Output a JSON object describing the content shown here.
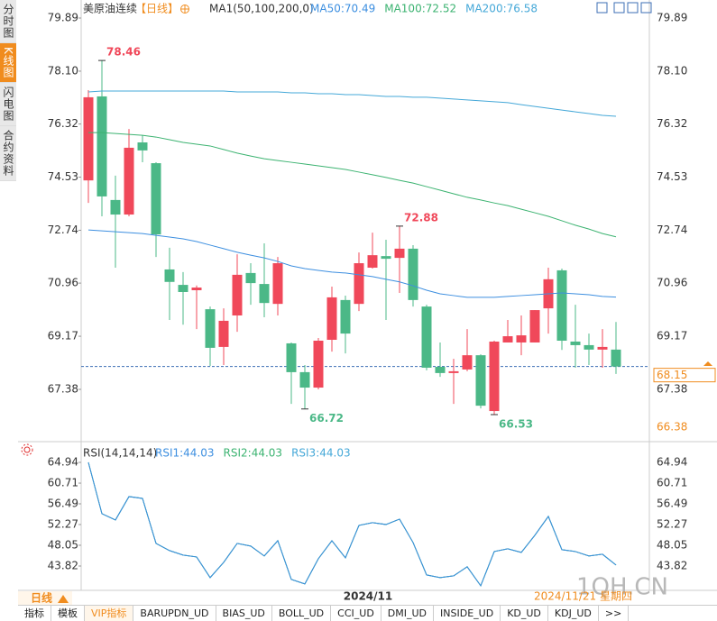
{
  "sidebar": [
    {
      "label": "分时图"
    },
    {
      "label": "K线图",
      "active": true
    },
    {
      "label": "闪电图"
    },
    {
      "label": "合约资料"
    }
  ],
  "chart_data": [
    {
      "type": "candlestick",
      "title": "美原油连续",
      "subtitle": "【日线】",
      "indicator": "MA1(50,100,200,0)",
      "categories": [
        null,
        null,
        null,
        null,
        null,
        null,
        null,
        null,
        null,
        null,
        null,
        null,
        null,
        null,
        null,
        null,
        null,
        null,
        null,
        null,
        null,
        "2024/11",
        null,
        null,
        null,
        null,
        null,
        null,
        null,
        null,
        null,
        null,
        null,
        null,
        null,
        null,
        null,
        null,
        null,
        null
      ],
      "open": [
        74.42,
        77.25,
        73.76,
        73.27,
        75.7,
        75.0,
        71.42,
        70.9,
        70.72,
        70.08,
        68.81,
        69.87,
        71.3,
        70.93,
        70.26,
        68.93,
        67.96,
        67.44,
        69.05,
        70.39,
        70.26,
        71.48,
        71.87,
        71.81,
        72.12,
        70.17,
        68.14,
        67.93,
        68.05,
        68.53,
        66.65,
        68.96,
        68.96,
        68.96,
        70.11,
        71.39,
        68.99,
        68.87,
        68.72,
        68.72
      ],
      "high": [
        77.46,
        78.46,
        74.58,
        76.15,
        75.94,
        75.03,
        72.15,
        71.33,
        70.88,
        70.17,
        70.11,
        71.93,
        71.63,
        72.3,
        71.84,
        68.96,
        68.2,
        69.11,
        70.84,
        70.54,
        71.99,
        72.66,
        72.42,
        72.88,
        72.24,
        70.23,
        68.96,
        68.41,
        69.41,
        68.56,
        69.02,
        69.72,
        69.87,
        70.05,
        71.48,
        71.45,
        70.23,
        69.26,
        69.41,
        69.65
      ],
      "low": [
        73.66,
        73.21,
        71.48,
        73.21,
        75.03,
        71.84,
        69.72,
        69.56,
        69.41,
        68.17,
        68.2,
        69.32,
        70.23,
        69.81,
        69.87,
        66.89,
        66.72,
        67.38,
        68.65,
        68.59,
        70.02,
        71.45,
        69.72,
        70.63,
        70.17,
        68.02,
        67.8,
        66.89,
        67.99,
        66.74,
        66.53,
        68.96,
        68.53,
        68.96,
        69.26,
        68.71,
        68.11,
        68.2,
        68.11,
        67.9
      ],
      "close": [
        77.22,
        73.88,
        73.27,
        75.52,
        75.43,
        72.6,
        71.0,
        70.66,
        70.81,
        68.78,
        69.69,
        71.24,
        70.96,
        70.29,
        71.63,
        67.96,
        67.44,
        69.02,
        70.48,
        69.26,
        71.63,
        71.9,
        71.78,
        72.12,
        70.39,
        68.11,
        67.93,
        67.99,
        68.53,
        66.83,
        68.99,
        69.17,
        69.2,
        70.05,
        71.09,
        69.02,
        68.87,
        68.72,
        68.81,
        68.15
      ],
      "up_color": "#f0485a",
      "down_color": "#4bb887",
      "ma_series": [
        {
          "name": "MA50:70.49",
          "color": "#3d8fe0",
          "values": [
            72.75,
            72.72,
            72.69,
            72.66,
            72.63,
            72.57,
            72.51,
            72.45,
            72.36,
            72.24,
            72.12,
            72.0,
            71.9,
            71.81,
            71.69,
            71.54,
            71.45,
            71.39,
            71.33,
            71.3,
            71.24,
            71.18,
            71.09,
            71.0,
            70.87,
            70.72,
            70.6,
            70.54,
            70.48,
            70.48,
            70.48,
            70.51,
            70.54,
            70.57,
            70.6,
            70.63,
            70.6,
            70.57,
            70.51,
            70.49
          ]
        },
        {
          "name": "MA100:72.52",
          "color": "#3cb371",
          "values": [
            76.03,
            76.03,
            76.0,
            75.97,
            75.94,
            75.88,
            75.79,
            75.7,
            75.64,
            75.58,
            75.46,
            75.34,
            75.24,
            75.15,
            75.09,
            75.03,
            74.97,
            74.91,
            74.85,
            74.79,
            74.7,
            74.61,
            74.52,
            74.42,
            74.33,
            74.21,
            74.09,
            73.97,
            73.85,
            73.76,
            73.66,
            73.57,
            73.45,
            73.33,
            73.21,
            73.06,
            72.91,
            72.78,
            72.63,
            72.52
          ]
        },
        {
          "name": "MA200:76.58",
          "color": "#45a8d8",
          "values": [
            77.4,
            77.43,
            77.43,
            77.43,
            77.43,
            77.43,
            77.43,
            77.43,
            77.43,
            77.43,
            77.43,
            77.4,
            77.4,
            77.4,
            77.4,
            77.37,
            77.37,
            77.34,
            77.34,
            77.31,
            77.31,
            77.28,
            77.25,
            77.25,
            77.22,
            77.22,
            77.19,
            77.16,
            77.13,
            77.1,
            77.07,
            77.04,
            76.97,
            76.91,
            76.85,
            76.79,
            76.73,
            76.67,
            76.61,
            76.58
          ]
        }
      ],
      "ylim": [
        65.68,
        79.89
      ],
      "yticks": [
        67.38,
        69.17,
        70.96,
        72.74,
        74.53,
        76.32,
        {
          "value": 78.1,
          "label": "78.10"
        },
        79.89
      ],
      "annotations": [
        78.46,
        72.88,
        66.72,
        66.53
      ],
      "last_price": 68.15,
      "lower_price": 66.38,
      "cursor_date": "2024/11/21 星期四"
    },
    {
      "type": "line",
      "title": "RSI(14,14,14)",
      "series": [
        {
          "name": "RSI1:44.03",
          "color": "#3d8fe0",
          "values": [
            64.94,
            54.48,
            53.2,
            57.97,
            57.6,
            48.43,
            46.96,
            46.04,
            45.67,
            41.45,
            44.57,
            48.43,
            47.88,
            45.86,
            48.98,
            41.09,
            40.17,
            45.31,
            48.98,
            45.49,
            52.1,
            52.65,
            52.28,
            53.38,
            48.61,
            42.0,
            41.45,
            41.82,
            43.66,
            39.8,
            46.77,
            47.33,
            46.59,
            50.08,
            53.93,
            47.14,
            46.77,
            45.86,
            46.22,
            44.03
          ]
        },
        {
          "name": "RSI2:44.03",
          "color": "#3cb371",
          "values": [
            64.94,
            54.48,
            53.2,
            57.97,
            57.6,
            48.43,
            46.96,
            46.04,
            45.67,
            41.45,
            44.57,
            48.43,
            47.88,
            45.86,
            48.98,
            41.09,
            40.17,
            45.31,
            48.98,
            45.49,
            52.1,
            52.65,
            52.28,
            53.38,
            48.61,
            42.0,
            41.45,
            41.82,
            43.66,
            39.8,
            46.77,
            47.33,
            46.59,
            50.08,
            53.93,
            47.14,
            46.77,
            45.86,
            46.22,
            44.03
          ]
        },
        {
          "name": "RSI3:44.03",
          "color": "#45a8d8",
          "values": [
            64.94,
            54.48,
            53.2,
            57.97,
            57.6,
            48.43,
            46.96,
            46.04,
            45.67,
            41.45,
            44.57,
            48.43,
            47.88,
            45.86,
            48.98,
            41.09,
            40.17,
            45.31,
            48.98,
            45.49,
            52.1,
            52.65,
            52.28,
            53.38,
            48.61,
            42.0,
            41.45,
            41.82,
            43.66,
            39.8,
            46.77,
            47.33,
            46.59,
            50.08,
            53.93,
            47.14,
            46.77,
            45.86,
            46.22,
            44.03
          ]
        }
      ],
      "ylim": [
        39.41,
        66.41
      ],
      "yticks": [
        64.94,
        60.71,
        56.49,
        52.27,
        48.05,
        43.82
      ]
    }
  ],
  "footer": {
    "period": "日线",
    "watermark": "1QH.CN"
  },
  "toolbar": [
    {
      "label": "指标"
    },
    {
      "label": "模板"
    },
    {
      "label": "VIP指标",
      "active": true
    },
    {
      "label": "BARUPDN_UD"
    },
    {
      "label": "BIAS_UD"
    },
    {
      "label": "BOLL_UD"
    },
    {
      "label": "CCI_UD"
    },
    {
      "label": "DMI_UD"
    },
    {
      "label": "INSIDE_UD"
    },
    {
      "label": "KD_UD"
    },
    {
      "label": "KDJ_UD"
    },
    {
      "label": ">>"
    }
  ]
}
